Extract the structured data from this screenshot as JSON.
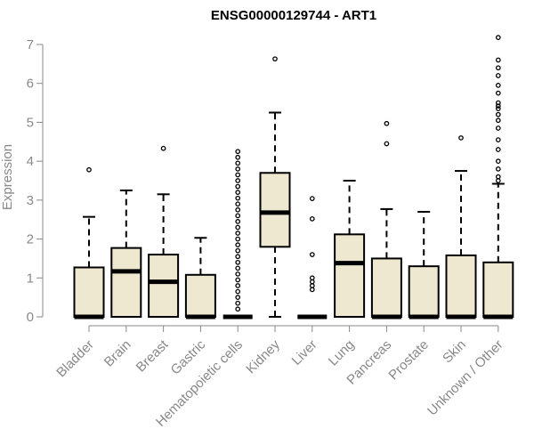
{
  "chart_data": {
    "type": "boxplot",
    "title": "ENSG00000129744 - ART1",
    "xlabel": "",
    "ylabel": "Expression",
    "ylim": [
      0,
      7
    ],
    "yticks": [
      0,
      1,
      2,
      3,
      4,
      5,
      6,
      7
    ],
    "grid": false,
    "colors": {
      "box_fill": "#efe8d0",
      "box_stroke": "#000000",
      "axis": "#888888"
    },
    "categories": [
      "Bladder",
      "Brain",
      "Breast",
      "Gastric",
      "Hematopoietic cells",
      "Kidney",
      "Liver",
      "Lung",
      "Pancreas",
      "Prostate",
      "Skin",
      "Unknown / Other"
    ],
    "boxes": [
      {
        "min": 0,
        "q1": 0,
        "median": 0,
        "q3": 1.27,
        "max": 2.57,
        "outliers": [
          3.78
        ]
      },
      {
        "min": 0,
        "q1": 0,
        "median": 1.17,
        "q3": 1.77,
        "max": 3.25,
        "outliers": []
      },
      {
        "min": 0,
        "q1": 0,
        "median": 0.9,
        "q3": 1.6,
        "max": 3.15,
        "outliers": [
          4.33
        ]
      },
      {
        "min": 0,
        "q1": 0,
        "median": 0,
        "q3": 1.08,
        "max": 2.03,
        "outliers": []
      },
      {
        "min": 0,
        "q1": 0,
        "median": 0,
        "q3": 0,
        "max": 0,
        "outliers": [
          0.2,
          0.35,
          0.5,
          0.65,
          0.8,
          0.95,
          1.1,
          1.25,
          1.4,
          1.55,
          1.7,
          1.85,
          2.0,
          2.15,
          2.3,
          2.45,
          2.6,
          2.75,
          2.9,
          3.05,
          3.2,
          3.35,
          3.5,
          3.65,
          3.8,
          3.95,
          4.1,
          4.25
        ]
      },
      {
        "min": 0,
        "q1": 1.8,
        "median": 2.68,
        "q3": 3.7,
        "max": 5.25,
        "outliers": [
          6.63
        ]
      },
      {
        "min": 0,
        "q1": 0,
        "median": 0,
        "q3": 0,
        "max": 0,
        "outliers": [
          0.7,
          0.8,
          0.9,
          1.0,
          1.6,
          2.52,
          3.04
        ]
      },
      {
        "min": 0,
        "q1": 0,
        "median": 1.38,
        "q3": 2.12,
        "max": 3.5,
        "outliers": []
      },
      {
        "min": 0,
        "q1": 0,
        "median": 0,
        "q3": 1.5,
        "max": 2.77,
        "outliers": [
          4.45,
          4.97
        ]
      },
      {
        "min": 0,
        "q1": 0,
        "median": 0,
        "q3": 1.3,
        "max": 2.7,
        "outliers": []
      },
      {
        "min": 0,
        "q1": 0,
        "median": 0,
        "q3": 1.58,
        "max": 3.75,
        "outliers": [
          4.6
        ]
      },
      {
        "min": 0,
        "q1": 0,
        "median": 0,
        "q3": 1.4,
        "max": 3.42,
        "outliers": [
          3.5,
          3.6,
          3.8,
          4.0,
          4.3,
          4.55,
          4.85,
          5.05,
          5.2,
          5.35,
          5.42,
          5.5,
          5.75,
          5.95,
          6.2,
          6.4,
          6.6,
          7.18
        ]
      }
    ]
  }
}
